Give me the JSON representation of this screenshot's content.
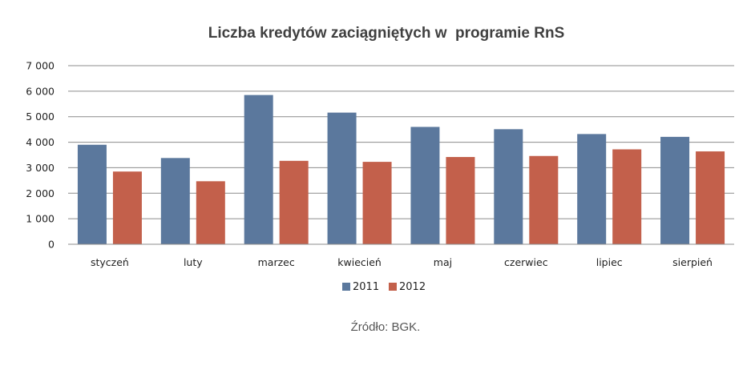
{
  "chart_data": {
    "type": "bar",
    "title": "Liczba kredytów zaciągniętych w  programie RnS",
    "xlabel": "",
    "ylabel": "",
    "categories": [
      "styczeń",
      "luty",
      "marzec",
      "kwiecień",
      "maj",
      "czerwiec",
      "lipiec",
      "sierpień"
    ],
    "series": [
      {
        "name": "2011",
        "color": "#5b789d",
        "values": [
          3900,
          3380,
          5850,
          5160,
          4600,
          4510,
          4320,
          4210
        ]
      },
      {
        "name": "2012",
        "color": "#c3604b",
        "values": [
          2850,
          2470,
          3270,
          3230,
          3420,
          3460,
          3720,
          3640
        ]
      }
    ],
    "ylim": [
      0,
      7000
    ],
    "yticks": [
      0,
      1000,
      2000,
      3000,
      4000,
      5000,
      6000,
      7000
    ],
    "ytick_labels": [
      "0",
      "1 000",
      "2 000",
      "3 000",
      "4 000",
      "5 000",
      "6 000",
      "7 000"
    ],
    "grid": true,
    "legend": "bottom-center"
  },
  "source_note": "Źródło: BGK."
}
